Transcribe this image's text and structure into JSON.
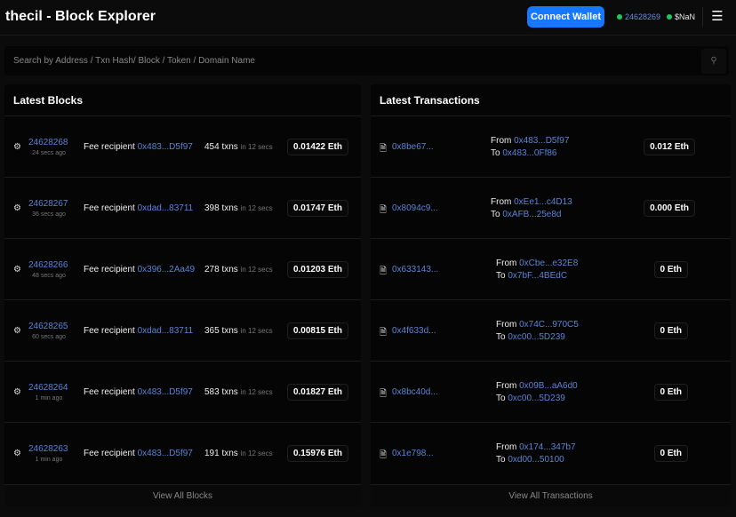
{
  "header": {
    "title": "thecil - Block Explorer",
    "connect_label": "Connect Wallet",
    "block_number": "24628269",
    "price": "$NaN",
    "menu_icon": "hamburger-icon"
  },
  "search": {
    "placeholder": "Search by Address / Txn Hash/ Block / Token / Domain Name",
    "icon": "search-icon"
  },
  "colors": {
    "accent": "#1677ff",
    "link": "#5b84d6",
    "status": "#22c55e"
  },
  "blocks": {
    "title": "Latest Blocks",
    "footer": "View All Blocks",
    "fee_label": "Fee recipient",
    "txns_suffix": "txns",
    "time_suffix": "in 12 secs",
    "items": [
      {
        "number": "24628268",
        "ago": "24 secs ago",
        "recipient": "0x483...D5f97",
        "txns": "454",
        "reward": "0.01422 Eth"
      },
      {
        "number": "24628267",
        "ago": "36 secs ago",
        "recipient": "0xdad...83711",
        "txns": "398",
        "reward": "0.01747 Eth"
      },
      {
        "number": "24628266",
        "ago": "48 secs ago",
        "recipient": "0x396...2Aa49",
        "txns": "278",
        "reward": "0.01203 Eth"
      },
      {
        "number": "24628265",
        "ago": "60 secs ago",
        "recipient": "0xdad...83711",
        "txns": "365",
        "reward": "0.00815 Eth"
      },
      {
        "number": "24628264",
        "ago": "1 min ago",
        "recipient": "0x483...D5f97",
        "txns": "583",
        "reward": "0.01827 Eth"
      },
      {
        "number": "24628263",
        "ago": "1 min ago",
        "recipient": "0x483...D5f97",
        "txns": "191",
        "reward": "0.15976 Eth"
      }
    ]
  },
  "transactions": {
    "title": "Latest Transactions",
    "footer": "View All Transactions",
    "from_label": "From",
    "to_label": "To",
    "items": [
      {
        "hash": "0x8be67...",
        "from": "0x483...D5f97",
        "to": "0x483...0Ff86",
        "value": "0.012 Eth"
      },
      {
        "hash": "0x8094c9...",
        "from": "0xEe1...c4D13",
        "to": "0xAFB...25e8d",
        "value": "0.000 Eth"
      },
      {
        "hash": "0x633143...",
        "from": "0xCbe...e32E8",
        "to": "0x7bF...4BEdC",
        "value": "0 Eth"
      },
      {
        "hash": "0x4f633d...",
        "from": "0x74C...970C5",
        "to": "0xc00...5D239",
        "value": "0 Eth"
      },
      {
        "hash": "0x8bc40d...",
        "from": "0x09B...aA6d0",
        "to": "0xc00...5D239",
        "value": "0 Eth"
      },
      {
        "hash": "0x1e798...",
        "from": "0x174...347b7",
        "to": "0xd00...50100",
        "value": "0 Eth"
      }
    ]
  }
}
